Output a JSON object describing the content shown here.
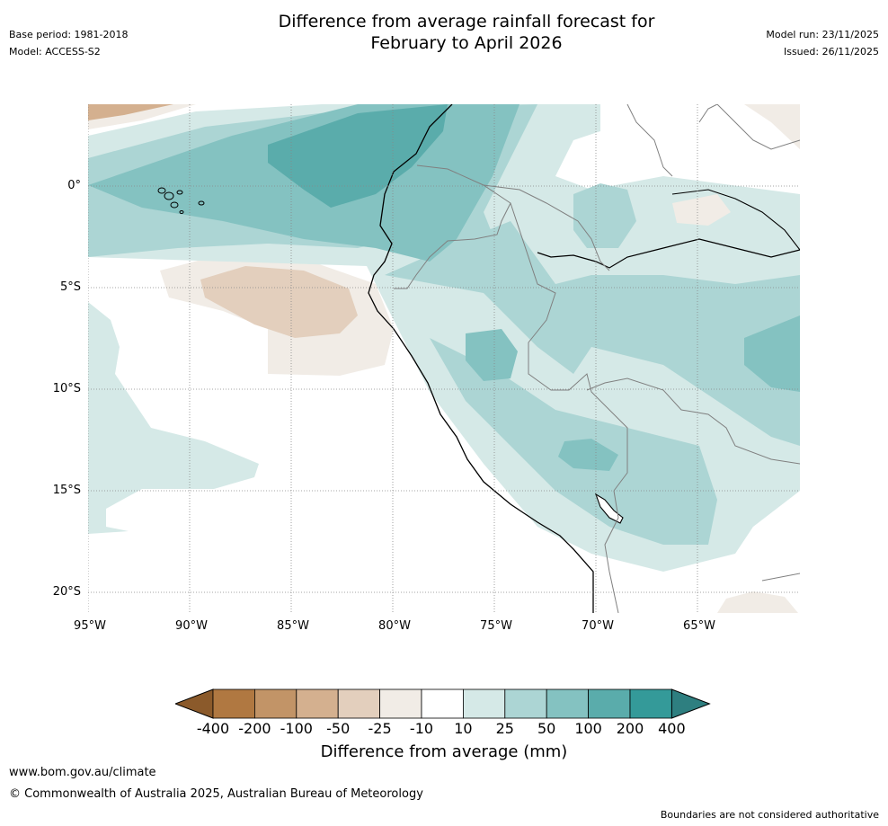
{
  "header": {
    "title_line1": "Difference from average rainfall forecast for",
    "title_line2": "February to April 2026",
    "base_period": "Base period: 1981-2018",
    "model": "Model: ACCESS-S2",
    "model_run": "Model run: 23/11/2025",
    "issued": "Issued: 26/11/2025"
  },
  "map": {
    "lat_labels": [
      "0°",
      "5°S",
      "10°S",
      "15°S",
      "20°S"
    ],
    "lon_labels": [
      "95°W",
      "90°W",
      "85°W",
      "80°W",
      "75°W",
      "70°W",
      "65°W"
    ],
    "extent": {
      "lon_min": -95,
      "lon_max": -60,
      "lat_min": -21,
      "lat_max": 4
    }
  },
  "legend": {
    "title": "Difference from average (mm)",
    "ticks": [
      "-400",
      "-200",
      "-100",
      "-50",
      "-25",
      "-10",
      "10",
      "25",
      "50",
      "100",
      "200",
      "400"
    ],
    "colors": [
      "#8b5a2b",
      "#b07841",
      "#c29467",
      "#d4b08f",
      "#e3cfbd",
      "#f1ece6",
      "#ffffff",
      "#d5e9e7",
      "#acd5d4",
      "#84c2c1",
      "#5aacab",
      "#349a99",
      "#2e7f80"
    ]
  },
  "footer": {
    "url": "www.bom.gov.au/climate",
    "copyright": "© Commonwealth of Australia 2025, Australian Bureau of Meteorology",
    "disclaimer": "Boundaries are not considered authoritative"
  }
}
